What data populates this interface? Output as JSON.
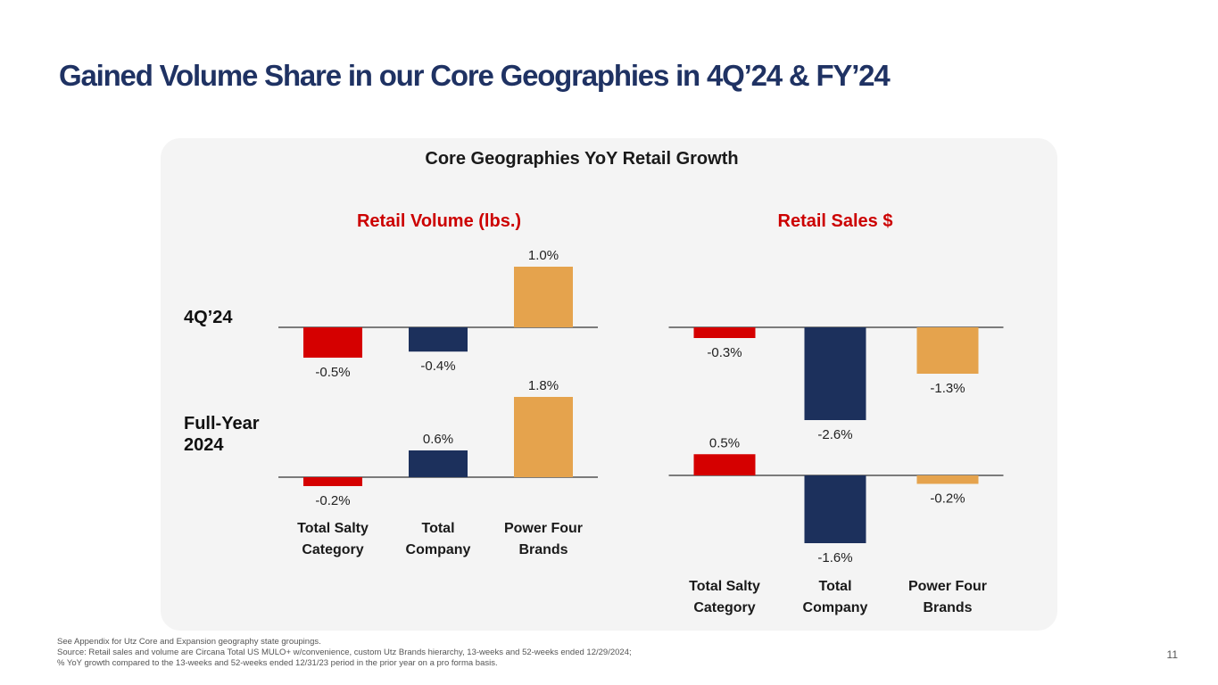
{
  "slide": {
    "title": "Gained Volume Share in our Core Geographies in 4Q’24 & FY’24",
    "page_number": "11",
    "footnotes": [
      "See Appendix for Utz Core and Expansion geography state groupings.",
      "Source: Retail sales and volume are Circana Total US MULO+ w/convenience, custom Utz Brands hierarchy, 13-weeks and 52-weeks ended 12/29/2024;",
      "% YoY growth compared to the 13-weeks and 52-weeks ended 12/31/23 period in the prior year on a pro forma basis."
    ]
  },
  "chart_data": {
    "type": "bar",
    "title": "Core Geographies YoY Retail Growth",
    "row_labels": [
      "4Q’24",
      "Full-Year 2024"
    ],
    "categories": [
      "Total Salty Category",
      "Total Company",
      "Power Four Brands"
    ],
    "colors": [
      "#d50000",
      "#1c305c",
      "#e5a34d"
    ],
    "panels": [
      {
        "name": "Retail Volume (lbs.)",
        "rows": [
          {
            "label": "4Q’24",
            "values": [
              -0.5,
              -0.4,
              1.0
            ],
            "data_labels": [
              "-0.5%",
              "-0.4%",
              "1.0%"
            ]
          },
          {
            "label": "Full-Year 2024",
            "values": [
              -0.2,
              0.6,
              1.8
            ],
            "data_labels": [
              "-0.2%",
              "0.6%",
              "1.8%"
            ]
          }
        ]
      },
      {
        "name": "Retail Sales $",
        "rows": [
          {
            "label": "4Q’24",
            "values": [
              -0.3,
              -2.6,
              -1.3
            ],
            "data_labels": [
              "-0.3%",
              "-2.6%",
              "-1.3%"
            ]
          },
          {
            "label": "Full-Year 2024",
            "values": [
              0.5,
              -1.6,
              -0.2
            ],
            "data_labels": [
              "0.5%",
              "-1.6%",
              "-0.2%"
            ]
          }
        ]
      }
    ]
  }
}
